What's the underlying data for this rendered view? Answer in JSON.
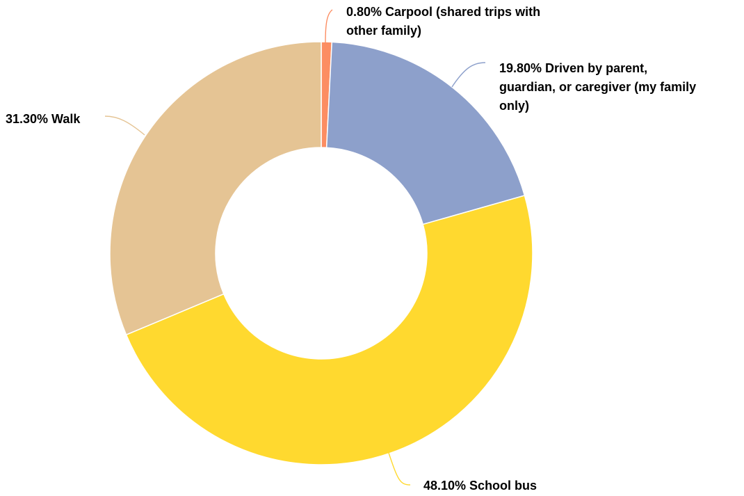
{
  "chart_data": {
    "type": "pie",
    "variant": "donut",
    "start": "top, clockwise",
    "slices": [
      {
        "label": "Carpool (shared trips with other family)",
        "value": 0.8,
        "value_label": "0.80%",
        "color": "#fc8d62",
        "label_lines": [
          "0.80% Carpool (shared trips with",
          "other family)"
        ]
      },
      {
        "label": "Driven by parent, guardian, or caregiver (my family only)",
        "value": 19.8,
        "value_label": "19.80%",
        "color": "#8da0cb",
        "label_lines": [
          "19.80% Driven by parent,",
          "guardian, or caregiver (my family",
          "only)"
        ]
      },
      {
        "label": "School bus",
        "value": 48.1,
        "value_label": "48.10%",
        "color": "#ffd92f",
        "label_lines": [
          "48.10% School bus"
        ]
      },
      {
        "label": "Walk",
        "value": 31.3,
        "value_label": "31.30%",
        "color": "#e5c494",
        "label_lines": [
          "31.30% Walk"
        ]
      }
    ]
  }
}
